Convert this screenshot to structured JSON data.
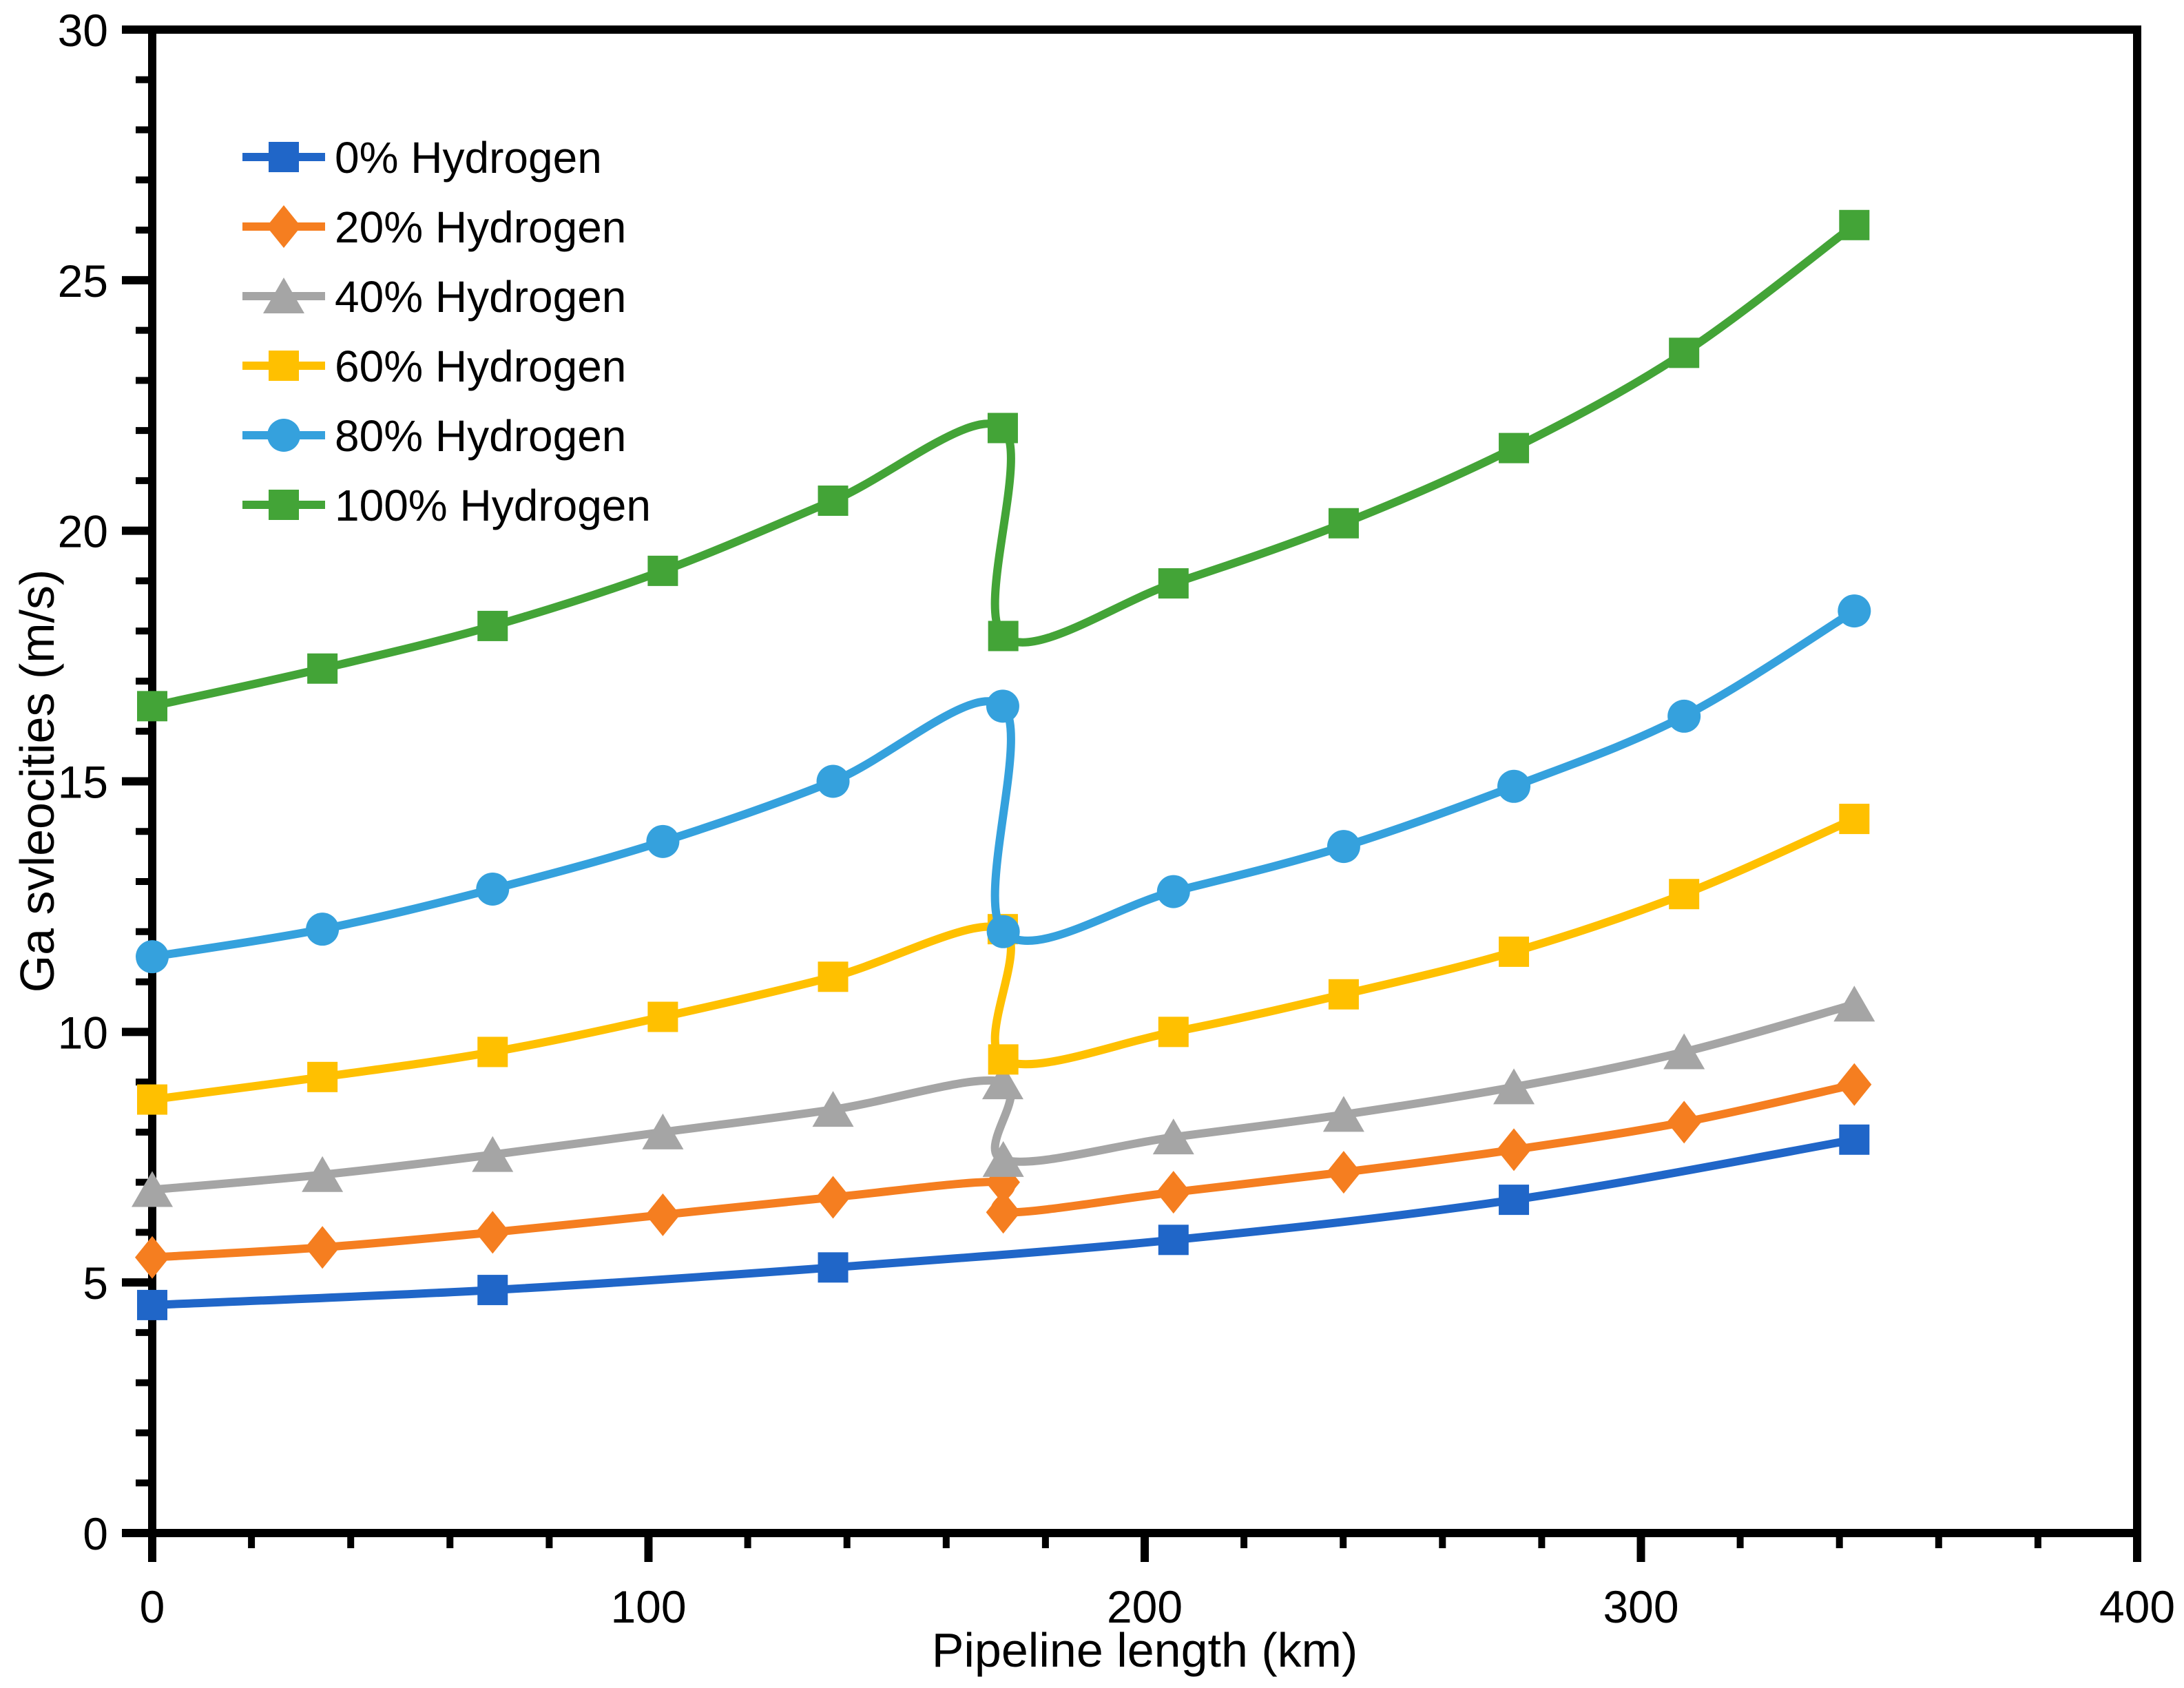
{
  "chart_data": {
    "type": "line",
    "title": "",
    "xlabel": "Pipeline length (km)",
    "ylabel": "Ga svleocities (m/s)",
    "xlim": [
      0,
      400
    ],
    "ylim": [
      0,
      30
    ],
    "x_major_ticks": [
      0,
      100,
      200,
      300,
      400
    ],
    "x_minor_step": 20,
    "y_major_ticks": [
      0,
      5,
      10,
      15,
      20,
      25,
      30
    ],
    "y_minor_step": 1,
    "grid": false,
    "plot_border": true,
    "legend_position": "top-left-inside",
    "axis_color": "#000000",
    "background_color": "#ffffff",
    "jump_note": "All hydrogen-blend series show a discontinuous drop at ~171 km",
    "series": [
      {
        "name": "0% Hydrogen",
        "color": "#2066C8",
        "marker": "square",
        "points": [
          [
            0,
            4.55
          ],
          [
            68.6,
            4.85
          ],
          [
            137.2,
            5.3
          ],
          [
            205.8,
            5.85
          ],
          [
            274.4,
            6.65
          ],
          [
            343,
            7.85
          ]
        ]
      },
      {
        "name": "20% Hydrogen",
        "color": "#F57E20",
        "marker": "diamond",
        "points": [
          [
            0,
            5.5
          ],
          [
            34.3,
            5.7
          ],
          [
            68.6,
            6.0
          ],
          [
            102.9,
            6.35
          ],
          [
            137.2,
            6.7
          ],
          [
            171.4,
            7.0
          ],
          [
            171.5,
            6.4
          ],
          [
            205.8,
            6.8
          ],
          [
            240.1,
            7.2
          ],
          [
            274.4,
            7.65
          ],
          [
            308.7,
            8.2
          ],
          [
            343,
            8.95
          ]
        ]
      },
      {
        "name": "40% Hydrogen",
        "color": "#A5A5A5",
        "marker": "triangle",
        "points": [
          [
            0,
            6.85
          ],
          [
            34.3,
            7.15
          ],
          [
            68.6,
            7.55
          ],
          [
            102.9,
            8.0
          ],
          [
            137.2,
            8.45
          ],
          [
            171.4,
            9.0
          ],
          [
            171.5,
            7.45
          ],
          [
            205.8,
            7.9
          ],
          [
            240.1,
            8.35
          ],
          [
            274.4,
            8.9
          ],
          [
            308.7,
            9.6
          ],
          [
            343,
            10.55
          ]
        ]
      },
      {
        "name": "60% Hydrogen",
        "color": "#FFC000",
        "marker": "square",
        "points": [
          [
            0,
            8.65
          ],
          [
            34.3,
            9.1
          ],
          [
            68.6,
            9.6
          ],
          [
            102.9,
            10.3
          ],
          [
            137.2,
            11.1
          ],
          [
            171.4,
            12.05
          ],
          [
            171.5,
            9.45
          ],
          [
            205.8,
            10.0
          ],
          [
            240.1,
            10.75
          ],
          [
            274.4,
            11.6
          ],
          [
            308.7,
            12.75
          ],
          [
            343,
            14.25
          ]
        ]
      },
      {
        "name": "80% Hydrogen",
        "color": "#35A1DD",
        "marker": "circle",
        "points": [
          [
            0,
            11.5
          ],
          [
            34.3,
            12.05
          ],
          [
            68.6,
            12.85
          ],
          [
            102.9,
            13.8
          ],
          [
            137.2,
            15.0
          ],
          [
            171.4,
            16.5
          ],
          [
            171.5,
            12.0
          ],
          [
            205.8,
            12.8
          ],
          [
            240.1,
            13.7
          ],
          [
            274.4,
            14.9
          ],
          [
            308.7,
            16.3
          ],
          [
            343,
            18.4
          ]
        ]
      },
      {
        "name": "100% Hydrogen",
        "color": "#43A437",
        "marker": "square",
        "points": [
          [
            0,
            16.5
          ],
          [
            34.3,
            17.25
          ],
          [
            68.6,
            18.1
          ],
          [
            102.9,
            19.2
          ],
          [
            137.2,
            20.6
          ],
          [
            171.4,
            22.05
          ],
          [
            171.5,
            17.9
          ],
          [
            205.8,
            18.95
          ],
          [
            240.1,
            20.15
          ],
          [
            274.4,
            21.65
          ],
          [
            308.7,
            23.55
          ],
          [
            343,
            26.1
          ]
        ]
      }
    ]
  }
}
